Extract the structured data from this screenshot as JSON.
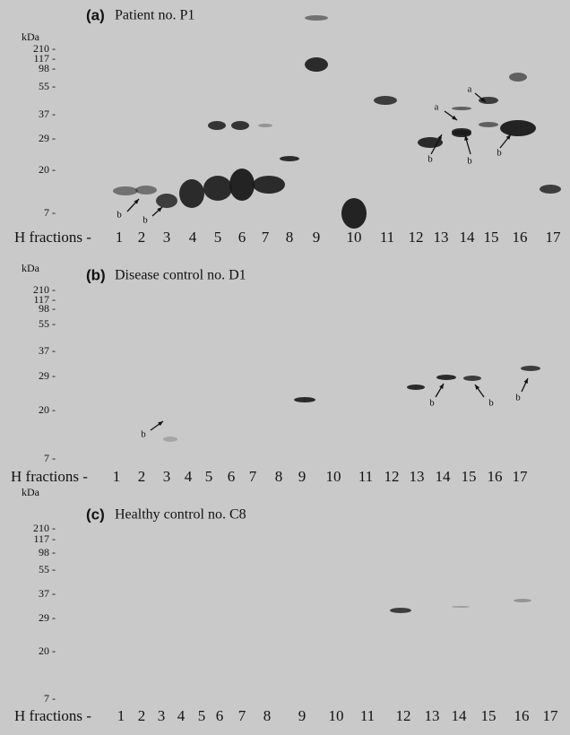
{
  "panels": [
    {
      "letter": "(a)",
      "title": "Patient no. P1",
      "unit": "kDa",
      "markers": [
        "210 -",
        "117 -",
        "98 -",
        "55 -",
        "37 -",
        "29 -",
        "20 -",
        "7 -"
      ],
      "lane_prefix": "H fractions -",
      "lanes": [
        "1",
        "2",
        "3",
        "4",
        "5",
        "6",
        "7",
        "8",
        "9",
        "10",
        "11",
        "12",
        "13",
        "14",
        "15",
        "16",
        "17"
      ],
      "annotations": [
        "b",
        "b",
        "b",
        "b",
        "b",
        "a",
        "a"
      ]
    },
    {
      "letter": "(b)",
      "title": "Disease control no. D1",
      "unit": "kDa",
      "markers": [
        "210 -",
        "117 -",
        "98 -",
        "55 -",
        "37 -",
        "29 -",
        "20 -",
        "7 -"
      ],
      "lane_prefix": "H fractions -",
      "lanes": [
        "1",
        "2",
        "3",
        "4",
        "5",
        "6",
        "7",
        "8",
        "9",
        "10",
        "11",
        "12",
        "13",
        "14",
        "15",
        "16",
        "17"
      ],
      "annotations": [
        "b",
        "b",
        "b",
        "b"
      ]
    },
    {
      "letter": "(c)",
      "title": "Healthy control no. C8",
      "unit": "kDa",
      "markers": [
        "210 -",
        "117 -",
        "98 -",
        "55 -",
        "37 -",
        "29 -",
        "20 -",
        "7 -"
      ],
      "lane_prefix": "H fractions -",
      "lanes": [
        "1",
        "2",
        "3",
        "4",
        "5",
        "6",
        "7",
        "8",
        "9",
        "10",
        "11",
        "12",
        "13",
        "14",
        "15",
        "16",
        "17"
      ],
      "annotations": []
    }
  ]
}
